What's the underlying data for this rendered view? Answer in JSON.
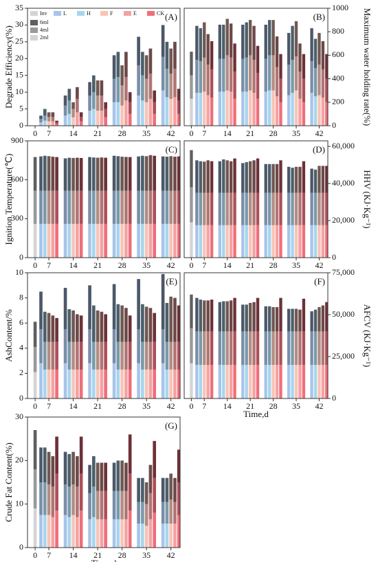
{
  "legend": {
    "series": [
      {
        "name": "Inv",
        "color": "#d4d4d4"
      },
      {
        "name": "L",
        "color": "#a9c4ea"
      },
      {
        "name": "H",
        "color": "#a6d6ee"
      },
      {
        "name": "F",
        "color": "#f8c4b6"
      },
      {
        "name": "E",
        "color": "#f4a2a2"
      },
      {
        "name": "CK",
        "color": "#f06e7a"
      }
    ],
    "segments": [
      {
        "name": "2ml",
        "shade": 0
      },
      {
        "name": "4ml",
        "shade": 0.28
      },
      {
        "name": "6ml",
        "shade": 0.55
      }
    ]
  },
  "chart_data": [
    {
      "type": "stacked-bar",
      "title": "(A)",
      "ylabel": "Degrade Efficiency(%)",
      "y_side": "left",
      "legend": "upper left",
      "categories": [
        0,
        7,
        14,
        21,
        28,
        35,
        42
      ],
      "ylim": [
        0,
        35
      ],
      "yticks": [
        0,
        5,
        10,
        15,
        20,
        25,
        30,
        35
      ],
      "values": [
        [
          0,
          1,
          1.5,
          1.3,
          1.3,
          0.5,
          3,
          3.5,
          2.5,
          4,
          1.3,
          4.5,
          5,
          4.5,
          4.5,
          2.5,
          7,
          7,
          6,
          7.5,
          3.5,
          9,
          7.5,
          7,
          8,
          3.5,
          10.5,
          8.5,
          8,
          8.5,
          3.5
        ],
        [
          0,
          1,
          1.5,
          1.3,
          1.3,
          0.5,
          3,
          4,
          2.5,
          4,
          1.3,
          4.5,
          5,
          4.5,
          4.5,
          2.5,
          7,
          7.5,
          6,
          7,
          3.5,
          9,
          7.5,
          7,
          7.5,
          3.5,
          10,
          8.5,
          7.5,
          8.5,
          4
        ],
        [
          0,
          1,
          2,
          1.4,
          1.4,
          0.5,
          3,
          3.5,
          2,
          3.5,
          1.4,
          4,
          5,
          4.5,
          4.5,
          2,
          7,
          7.5,
          6,
          7.5,
          3,
          8.5,
          7,
          7,
          7.5,
          3.5,
          9.5,
          8,
          7.5,
          8,
          3.5
        ]
      ]
    },
    {
      "type": "stacked-bar",
      "title": "(B)",
      "ylabel": "Maximum water holding rate(%)",
      "y_side": "right",
      "categories": [
        0,
        7,
        14,
        21,
        28,
        35,
        42
      ],
      "ylim": [
        0,
        1000
      ],
      "yticks": [
        0,
        200,
        400,
        600,
        800,
        1000
      ],
      "values": [
        [
          230,
          280,
          280,
          290,
          260,
          240,
          290,
          290,
          300,
          290,
          230,
          290,
          290,
          300,
          280,
          230,
          290,
          300,
          300,
          250,
          200,
          260,
          280,
          300,
          230,
          200,
          280,
          250,
          260,
          240,
          200
        ],
        [
          200,
          280,
          270,
          290,
          260,
          240,
          280,
          280,
          300,
          290,
          230,
          280,
          290,
          300,
          280,
          220,
          280,
          300,
          300,
          250,
          200,
          260,
          280,
          290,
          230,
          200,
          270,
          240,
          260,
          240,
          200
        ],
        [
          200,
          290,
          280,
          300,
          260,
          240,
          290,
          290,
          310,
          290,
          240,
          290,
          300,
          300,
          290,
          230,
          290,
          300,
          300,
          260,
          210,
          270,
          290,
          300,
          240,
          210,
          280,
          250,
          270,
          240,
          210
        ]
      ]
    },
    {
      "type": "stacked-bar",
      "title": "(C)",
      "ylabel": "Ignition Temperature(℃)",
      "y_side": "left",
      "categories": [
        0,
        7,
        14,
        21,
        28,
        35,
        42
      ],
      "ylim": [
        0,
        900
      ],
      "yticks": [
        0,
        300,
        600,
        900
      ],
      "values": [
        [
          260,
          260,
          260,
          260,
          260,
          260,
          260,
          260,
          260,
          260,
          260,
          260,
          260,
          260,
          260,
          260,
          260,
          260,
          260,
          260,
          260,
          260,
          260,
          260,
          260,
          260,
          260,
          260,
          260,
          260,
          260
        ],
        [
          255,
          255,
          255,
          255,
          255,
          255,
          255,
          255,
          255,
          255,
          255,
          255,
          255,
          255,
          255,
          255,
          255,
          255,
          255,
          255,
          255,
          255,
          255,
          255,
          255,
          255,
          255,
          255,
          255,
          255,
          255
        ],
        [
          260,
          265,
          270,
          267,
          263,
          260,
          250,
          255,
          253,
          255,
          253,
          260,
          257,
          255,
          257,
          255,
          270,
          267,
          263,
          261,
          260,
          265,
          270,
          267,
          275,
          270,
          265,
          263,
          267,
          263,
          265
        ]
      ]
    },
    {
      "type": "stacked-bar",
      "title": "(D)",
      "ylabel": "HHV (KJ·Kg⁻¹)",
      "y_side": "right",
      "categories": [
        0,
        7,
        14,
        21,
        28,
        35,
        42
      ],
      "ylim": [
        0,
        63000
      ],
      "yticks": [
        0,
        {
          "value": 20000,
          "label": "20,000"
        },
        {
          "value": 40000,
          "label": "40,000"
        },
        {
          "value": 60000,
          "label": "60,000"
        }
      ],
      "values": [
        [
          19000,
          17500,
          17500,
          17500,
          17500,
          17500,
          17500,
          17500,
          17500,
          17500,
          17500,
          17500,
          17500,
          17500,
          17500,
          17500,
          17500,
          17500,
          17500,
          17500,
          17500,
          17500,
          17500,
          17500,
          17500,
          17500,
          17500,
          17500,
          17500,
          17500,
          17500
        ],
        [
          19000,
          17500,
          17500,
          17500,
          17500,
          17500,
          17500,
          17500,
          17500,
          17500,
          17500,
          17500,
          17500,
          17500,
          17500,
          17500,
          17500,
          17500,
          17500,
          17500,
          17500,
          17500,
          17500,
          17500,
          17500,
          17500,
          17500,
          17500,
          17500,
          17500,
          17500
        ],
        [
          20000,
          17500,
          17000,
          16800,
          17500,
          17000,
          17000,
          18000,
          17500,
          17000,
          18500,
          16000,
          16500,
          17000,
          17500,
          18500,
          15500,
          15500,
          15500,
          15500,
          17500,
          14000,
          13500,
          14000,
          14000,
          17000,
          13000,
          12500,
          14500,
          14500,
          14500
        ]
      ]
    },
    {
      "type": "stacked-bar",
      "title": "(E)",
      "ylabel": "AshContent/%",
      "y_side": "left",
      "categories": [
        0,
        7,
        14,
        21,
        28,
        35,
        42
      ],
      "ylim": [
        0,
        10
      ],
      "yticks": [
        0,
        2,
        4,
        6,
        8,
        10
      ],
      "values": [
        [
          2.1,
          2.8,
          2.3,
          2.3,
          2.3,
          2.3,
          2.8,
          2.3,
          2.3,
          2.3,
          2.3,
          2.8,
          2.3,
          2.3,
          2.3,
          2.3,
          2.8,
          2.3,
          2.3,
          2.3,
          2.3,
          2.8,
          2.3,
          2.3,
          2.3,
          2.3,
          2.8,
          2.3,
          2.3,
          2.3,
          2.3
        ],
        [
          2.0,
          2.7,
          2.2,
          2.2,
          2.2,
          2.2,
          2.7,
          2.2,
          2.2,
          2.2,
          2.2,
          2.7,
          2.2,
          2.2,
          2.2,
          2.2,
          2.7,
          2.2,
          2.2,
          2.2,
          2.2,
          2.7,
          2.2,
          2.2,
          2.2,
          2.2,
          2.7,
          2.2,
          2.2,
          2.2,
          2.2
        ],
        [
          2.0,
          3.0,
          2.4,
          2.3,
          2.1,
          1.9,
          3.3,
          2.6,
          2.5,
          2.2,
          2.1,
          3.5,
          2.9,
          2.5,
          2.4,
          2.2,
          3.6,
          3.0,
          2.9,
          2.7,
          2.1,
          4.0,
          3.0,
          2.8,
          2.7,
          2.3,
          4.4,
          3.1,
          3.6,
          3.5,
          2.9
        ]
      ]
    },
    {
      "type": "stacked-bar",
      "title": "(F)",
      "ylabel": "AFCV (KJ·Kg⁻¹)",
      "xlabel": "Time,d",
      "y_side": "right",
      "categories": [
        0,
        7,
        14,
        21,
        28,
        35,
        42
      ],
      "ylim": [
        0,
        75000
      ],
      "yticks": [
        0,
        {
          "value": 25000,
          "label": "25,000"
        },
        {
          "value": 50000,
          "label": "50,000"
        },
        {
          "value": 75000,
          "label": "75,000"
        }
      ],
      "values": [
        [
          21000,
          20000,
          20000,
          20000,
          20000,
          20000,
          20000,
          20000,
          20000,
          20000,
          20000,
          20000,
          20000,
          20000,
          20000,
          20000,
          20000,
          20000,
          20000,
          20000,
          20000,
          20000,
          20000,
          20000,
          20000,
          20000,
          20000,
          20000,
          20000,
          20000,
          20000
        ],
        [
          21000,
          20000,
          20000,
          20000,
          20000,
          20000,
          20000,
          20000,
          20000,
          20000,
          20000,
          20000,
          20000,
          20000,
          20000,
          20000,
          20000,
          20000,
          20000,
          20000,
          20000,
          20000,
          20000,
          20000,
          20000,
          20000,
          20000,
          20000,
          20000,
          20000,
          20000
        ],
        [
          20000,
          20000,
          19000,
          18500,
          18500,
          19000,
          17500,
          18000,
          18000,
          18500,
          20000,
          16000,
          16000,
          17000,
          17500,
          20000,
          15000,
          15000,
          14500,
          14500,
          20000,
          13500,
          13500,
          13500,
          13000,
          19500,
          12000,
          13000,
          14500,
          15500,
          17500
        ]
      ]
    },
    {
      "type": "stacked-bar",
      "title": "(G)",
      "ylabel": "Crude Fat Content(%)",
      "xlabel": "Time,d",
      "y_side": "left",
      "categories": [
        0,
        7,
        14,
        21,
        28,
        35,
        42
      ],
      "ylim": [
        0,
        30
      ],
      "yticks": [
        0,
        10,
        20,
        30
      ],
      "values": [
        [
          9,
          7.5,
          7.5,
          7.5,
          7,
          8.5,
          7.5,
          7,
          7.5,
          7,
          8.5,
          6.5,
          7,
          6.5,
          6.5,
          6.5,
          6.5,
          6.5,
          6.5,
          6.5,
          8.5,
          5.5,
          5.5,
          5,
          6.5,
          8,
          5.5,
          5.5,
          5.5,
          5.5,
          7.5
        ],
        [
          9,
          7.5,
          7.5,
          7,
          7,
          8.5,
          7,
          7,
          7,
          7,
          8.5,
          6,
          7,
          6.5,
          6.5,
          6.5,
          6.5,
          6.5,
          6.5,
          6.5,
          8.5,
          5,
          5,
          5,
          6,
          8,
          5,
          5,
          5.5,
          5,
          7.5
        ],
        [
          9,
          8,
          8,
          7.5,
          7,
          8.5,
          7.5,
          7.5,
          7.5,
          7,
          8.5,
          6.5,
          7,
          6.5,
          6.5,
          6.5,
          6.5,
          7,
          7,
          6.5,
          9,
          5.5,
          5.5,
          5,
          6.5,
          8.5,
          5.5,
          5.5,
          6,
          5.5,
          7.5
        ]
      ]
    }
  ]
}
